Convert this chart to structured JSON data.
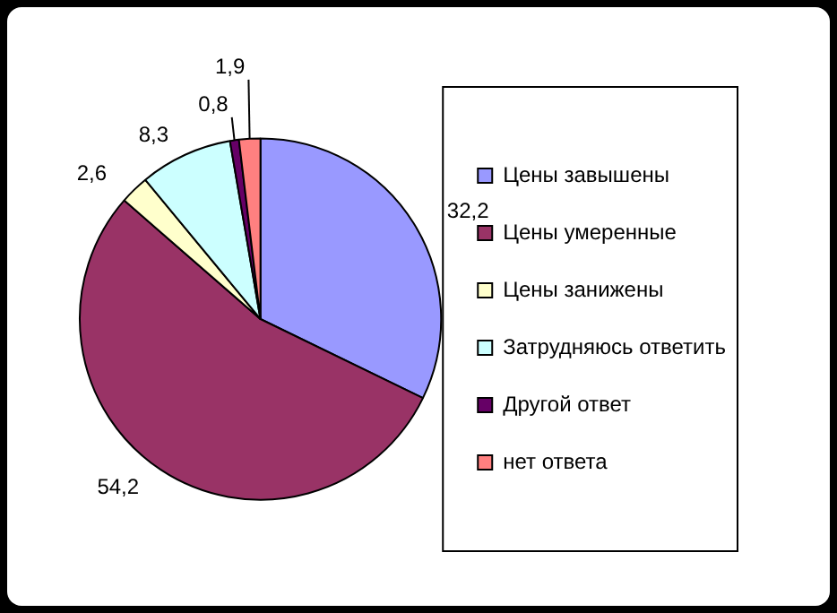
{
  "chart_data": {
    "type": "pie",
    "categories": [
      "Цены завышены",
      "Цены умеренные",
      "Цены занижены",
      "Затрудняюсь ответить",
      "Другой ответ",
      "нет ответа"
    ],
    "values": [
      32.2,
      54.2,
      2.6,
      8.3,
      0.8,
      1.9
    ],
    "value_labels": [
      "32,2",
      "54,2",
      "2,6",
      "8,3",
      "0,8",
      "1,9"
    ],
    "colors": [
      "#9999ff",
      "#993366",
      "#ffffcc",
      "#ccffff",
      "#660066",
      "#ff8080"
    ],
    "legend": "right"
  }
}
